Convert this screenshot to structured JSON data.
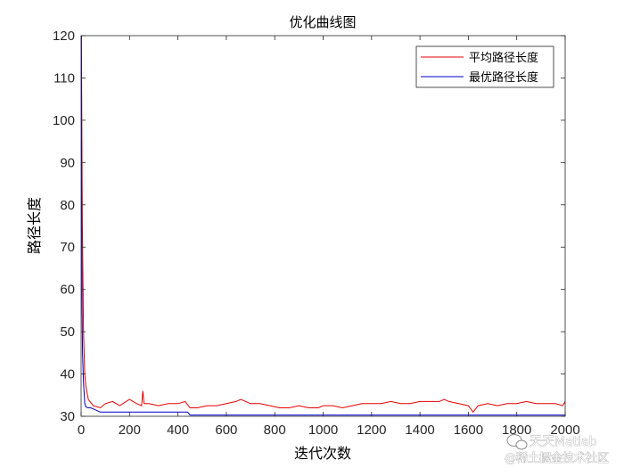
{
  "chart_data": {
    "type": "line",
    "title": "优化曲线图",
    "xlabel": "迭代次数",
    "ylabel": "路径长度",
    "xlim": [
      0,
      2000
    ],
    "ylim": [
      30,
      120
    ],
    "xticks": [
      0,
      200,
      400,
      600,
      800,
      1000,
      1200,
      1400,
      1600,
      1800,
      2000
    ],
    "yticks": [
      30,
      40,
      50,
      60,
      70,
      80,
      90,
      100,
      110,
      120
    ],
    "grid": false,
    "legend_position": "top-right",
    "series": [
      {
        "name": "平均路径长度",
        "color": "#e60000",
        "x": [
          1,
          5,
          10,
          15,
          20,
          30,
          50,
          80,
          100,
          130,
          160,
          200,
          230,
          250,
          255,
          260,
          280,
          320,
          360,
          400,
          430,
          450,
          480,
          520,
          560,
          600,
          640,
          660,
          700,
          740,
          780,
          820,
          860,
          900,
          940,
          980,
          1000,
          1040,
          1080,
          1120,
          1160,
          1200,
          1240,
          1280,
          1320,
          1360,
          1400,
          1440,
          1480,
          1500,
          1520,
          1560,
          1600,
          1620,
          1640,
          1680,
          1720,
          1760,
          1800,
          1840,
          1880,
          1920,
          1960,
          1990,
          2000
        ],
        "y": [
          120,
          75,
          50,
          40,
          37,
          34,
          32.5,
          32,
          33,
          33.5,
          32.5,
          34,
          33,
          32.5,
          36,
          33,
          33,
          32.5,
          33,
          33,
          33.5,
          32,
          32,
          32.5,
          32.5,
          33,
          33.5,
          34,
          33,
          33,
          32.5,
          32,
          32,
          32.5,
          32,
          32,
          32.5,
          32.5,
          32,
          32.5,
          33,
          33,
          33,
          33.5,
          33,
          33,
          33.5,
          33.5,
          33.5,
          34,
          33.5,
          33,
          32.5,
          31,
          32.5,
          33,
          32.5,
          33,
          33,
          33.5,
          33,
          33,
          33,
          32.5,
          33.5
        ]
      },
      {
        "name": "最优路径长度",
        "color": "#0000cc",
        "x": [
          1,
          2,
          4,
          6,
          10,
          15,
          20,
          30,
          40,
          60,
          80,
          100,
          200,
          300,
          440,
          450,
          500,
          1000,
          1500,
          2000
        ],
        "y": [
          120,
          80,
          55,
          45,
          38,
          33,
          32.2,
          32,
          32,
          31.5,
          31,
          31,
          31,
          31,
          31,
          30.3,
          30.3,
          30.3,
          30.3,
          30.3
        ]
      }
    ]
  },
  "watermark": {
    "line1": "天天Matlab",
    "line2": "@稀土掘金技术社区",
    "icon": "wechat-icon"
  }
}
